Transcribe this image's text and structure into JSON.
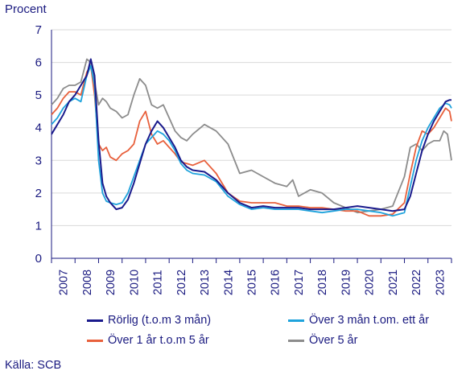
{
  "chart_data": {
    "type": "line",
    "ylabel": "Procent",
    "ylim": [
      0,
      7
    ],
    "yticks": [
      "0",
      "1",
      "2",
      "3",
      "4",
      "5",
      "6",
      "7"
    ],
    "xlim": [
      2007.0,
      2024.0
    ],
    "xticks": [
      "2007",
      "2008",
      "2009",
      "2010",
      "2011",
      "2012",
      "2013",
      "2014",
      "2015",
      "2016",
      "2017",
      "2018",
      "2019",
      "2020",
      "2021",
      "2022",
      "2023"
    ],
    "grid": "horizontal",
    "legend_position": "bottom",
    "source": "Källa: SCB",
    "colors": {
      "axis": "#1a1a80",
      "grid": "#d9d9d9"
    },
    "series": [
      {
        "name": "Rörlig (t.o.m 3 mån)",
        "color": "#1a1a8c",
        "points": [
          [
            2007.0,
            3.8
          ],
          [
            2007.25,
            4.1
          ],
          [
            2007.5,
            4.4
          ],
          [
            2007.75,
            4.8
          ],
          [
            2008.0,
            5.0
          ],
          [
            2008.25,
            5.3
          ],
          [
            2008.5,
            5.6
          ],
          [
            2008.67,
            6.1
          ],
          [
            2008.83,
            5.6
          ],
          [
            2009.0,
            3.6
          ],
          [
            2009.17,
            2.3
          ],
          [
            2009.33,
            1.9
          ],
          [
            2009.5,
            1.7
          ],
          [
            2009.75,
            1.5
          ],
          [
            2010.0,
            1.55
          ],
          [
            2010.25,
            1.8
          ],
          [
            2010.5,
            2.3
          ],
          [
            2010.75,
            2.9
          ],
          [
            2011.0,
            3.5
          ],
          [
            2011.25,
            3.9
          ],
          [
            2011.5,
            4.2
          ],
          [
            2011.75,
            4.0
          ],
          [
            2012.0,
            3.7
          ],
          [
            2012.25,
            3.4
          ],
          [
            2012.5,
            3.0
          ],
          [
            2012.75,
            2.8
          ],
          [
            2013.0,
            2.7
          ],
          [
            2013.5,
            2.65
          ],
          [
            2014.0,
            2.4
          ],
          [
            2014.5,
            2.0
          ],
          [
            2015.0,
            1.7
          ],
          [
            2015.5,
            1.55
          ],
          [
            2016.0,
            1.6
          ],
          [
            2016.5,
            1.55
          ],
          [
            2017.0,
            1.55
          ],
          [
            2017.5,
            1.55
          ],
          [
            2018.0,
            1.5
          ],
          [
            2018.5,
            1.5
          ],
          [
            2019.0,
            1.5
          ],
          [
            2019.5,
            1.55
          ],
          [
            2020.0,
            1.6
          ],
          [
            2020.5,
            1.55
          ],
          [
            2021.0,
            1.5
          ],
          [
            2021.5,
            1.45
          ],
          [
            2022.0,
            1.5
          ],
          [
            2022.25,
            1.9
          ],
          [
            2022.5,
            2.6
          ],
          [
            2022.75,
            3.3
          ],
          [
            2023.0,
            3.8
          ],
          [
            2023.25,
            4.2
          ],
          [
            2023.5,
            4.5
          ],
          [
            2023.75,
            4.8
          ],
          [
            2023.92,
            4.85
          ],
          [
            2024.0,
            4.85
          ]
        ]
      },
      {
        "name": "Över 3 mån t.om. ett år",
        "color": "#1fa3dc",
        "points": [
          [
            2007.0,
            4.1
          ],
          [
            2007.25,
            4.3
          ],
          [
            2007.5,
            4.6
          ],
          [
            2007.75,
            4.8
          ],
          [
            2008.0,
            4.9
          ],
          [
            2008.25,
            4.8
          ],
          [
            2008.5,
            5.6
          ],
          [
            2008.67,
            5.9
          ],
          [
            2008.83,
            5.3
          ],
          [
            2009.0,
            3.0
          ],
          [
            2009.17,
            2.0
          ],
          [
            2009.33,
            1.75
          ],
          [
            2009.5,
            1.7
          ],
          [
            2009.75,
            1.65
          ],
          [
            2010.0,
            1.7
          ],
          [
            2010.25,
            2.0
          ],
          [
            2010.5,
            2.5
          ],
          [
            2010.75,
            3.0
          ],
          [
            2011.0,
            3.5
          ],
          [
            2011.25,
            3.7
          ],
          [
            2011.5,
            3.9
          ],
          [
            2011.75,
            3.8
          ],
          [
            2012.0,
            3.6
          ],
          [
            2012.25,
            3.3
          ],
          [
            2012.5,
            2.9
          ],
          [
            2012.75,
            2.7
          ],
          [
            2013.0,
            2.6
          ],
          [
            2013.5,
            2.55
          ],
          [
            2014.0,
            2.35
          ],
          [
            2014.5,
            1.9
          ],
          [
            2015.0,
            1.65
          ],
          [
            2015.5,
            1.5
          ],
          [
            2016.0,
            1.55
          ],
          [
            2016.5,
            1.5
          ],
          [
            2017.0,
            1.5
          ],
          [
            2017.5,
            1.5
          ],
          [
            2018.0,
            1.45
          ],
          [
            2018.5,
            1.4
          ],
          [
            2019.0,
            1.45
          ],
          [
            2019.5,
            1.5
          ],
          [
            2020.0,
            1.5
          ],
          [
            2020.5,
            1.45
          ],
          [
            2021.0,
            1.4
          ],
          [
            2021.5,
            1.3
          ],
          [
            2022.0,
            1.4
          ],
          [
            2022.25,
            2.2
          ],
          [
            2022.5,
            3.0
          ],
          [
            2022.75,
            3.6
          ],
          [
            2023.0,
            4.0
          ],
          [
            2023.25,
            4.3
          ],
          [
            2023.5,
            4.6
          ],
          [
            2023.75,
            4.75
          ],
          [
            2023.92,
            4.7
          ],
          [
            2024.0,
            4.6
          ]
        ]
      },
      {
        "name": "Över 1 år t.o.m 5 år",
        "color": "#e8603c",
        "points": [
          [
            2007.0,
            4.4
          ],
          [
            2007.25,
            4.6
          ],
          [
            2007.5,
            4.9
          ],
          [
            2007.75,
            5.1
          ],
          [
            2008.0,
            5.1
          ],
          [
            2008.25,
            5.0
          ],
          [
            2008.5,
            5.7
          ],
          [
            2008.67,
            5.9
          ],
          [
            2008.83,
            5.0
          ],
          [
            2009.0,
            3.5
          ],
          [
            2009.17,
            3.3
          ],
          [
            2009.33,
            3.4
          ],
          [
            2009.5,
            3.1
          ],
          [
            2009.75,
            3.0
          ],
          [
            2010.0,
            3.2
          ],
          [
            2010.25,
            3.3
          ],
          [
            2010.5,
            3.5
          ],
          [
            2010.75,
            4.2
          ],
          [
            2011.0,
            4.5
          ],
          [
            2011.25,
            3.8
          ],
          [
            2011.5,
            3.5
          ],
          [
            2011.75,
            3.6
          ],
          [
            2012.0,
            3.4
          ],
          [
            2012.25,
            3.2
          ],
          [
            2012.5,
            2.95
          ],
          [
            2012.75,
            2.9
          ],
          [
            2013.0,
            2.85
          ],
          [
            2013.5,
            3.0
          ],
          [
            2014.0,
            2.6
          ],
          [
            2014.5,
            2.0
          ],
          [
            2015.0,
            1.75
          ],
          [
            2015.5,
            1.7
          ],
          [
            2016.0,
            1.7
          ],
          [
            2016.5,
            1.7
          ],
          [
            2017.0,
            1.6
          ],
          [
            2017.5,
            1.6
          ],
          [
            2018.0,
            1.55
          ],
          [
            2018.5,
            1.55
          ],
          [
            2019.0,
            1.5
          ],
          [
            2019.5,
            1.45
          ],
          [
            2020.0,
            1.45
          ],
          [
            2020.5,
            1.3
          ],
          [
            2021.0,
            1.3
          ],
          [
            2021.5,
            1.35
          ],
          [
            2022.0,
            1.7
          ],
          [
            2022.25,
            2.6
          ],
          [
            2022.5,
            3.4
          ],
          [
            2022.75,
            3.9
          ],
          [
            2023.0,
            3.8
          ],
          [
            2023.25,
            4.0
          ],
          [
            2023.5,
            4.3
          ],
          [
            2023.75,
            4.6
          ],
          [
            2023.92,
            4.5
          ],
          [
            2024.0,
            4.2
          ]
        ]
      },
      {
        "name": "Över 5 år",
        "color": "#8c8c8c",
        "points": [
          [
            2007.0,
            4.7
          ],
          [
            2007.25,
            4.9
          ],
          [
            2007.5,
            5.2
          ],
          [
            2007.75,
            5.3
          ],
          [
            2008.0,
            5.3
          ],
          [
            2008.25,
            5.4
          ],
          [
            2008.5,
            6.1
          ],
          [
            2008.67,
            6.0
          ],
          [
            2008.83,
            5.4
          ],
          [
            2009.0,
            4.7
          ],
          [
            2009.17,
            4.9
          ],
          [
            2009.33,
            4.8
          ],
          [
            2009.5,
            4.6
          ],
          [
            2009.75,
            4.5
          ],
          [
            2010.0,
            4.3
          ],
          [
            2010.25,
            4.4
          ],
          [
            2010.5,
            5.0
          ],
          [
            2010.75,
            5.5
          ],
          [
            2011.0,
            5.3
          ],
          [
            2011.25,
            4.7
          ],
          [
            2011.5,
            4.6
          ],
          [
            2011.75,
            4.7
          ],
          [
            2012.0,
            4.3
          ],
          [
            2012.25,
            3.9
          ],
          [
            2012.5,
            3.7
          ],
          [
            2012.75,
            3.6
          ],
          [
            2013.0,
            3.8
          ],
          [
            2013.5,
            4.1
          ],
          [
            2014.0,
            3.9
          ],
          [
            2014.5,
            3.5
          ],
          [
            2015.0,
            2.6
          ],
          [
            2015.5,
            2.7
          ],
          [
            2016.0,
            2.5
          ],
          [
            2016.5,
            2.3
          ],
          [
            2017.0,
            2.2
          ],
          [
            2017.25,
            2.4
          ],
          [
            2017.5,
            1.9
          ],
          [
            2018.0,
            2.1
          ],
          [
            2018.5,
            2.0
          ],
          [
            2019.0,
            1.7
          ],
          [
            2019.5,
            1.55
          ],
          [
            2020.0,
            1.4
          ],
          [
            2020.5,
            1.45
          ],
          [
            2021.0,
            1.5
          ],
          [
            2021.5,
            1.6
          ],
          [
            2022.0,
            2.5
          ],
          [
            2022.25,
            3.4
          ],
          [
            2022.5,
            3.5
          ],
          [
            2022.75,
            3.3
          ],
          [
            2023.0,
            3.5
          ],
          [
            2023.25,
            3.6
          ],
          [
            2023.5,
            3.6
          ],
          [
            2023.67,
            3.9
          ],
          [
            2023.83,
            3.8
          ],
          [
            2024.0,
            3.0
          ]
        ]
      }
    ]
  }
}
